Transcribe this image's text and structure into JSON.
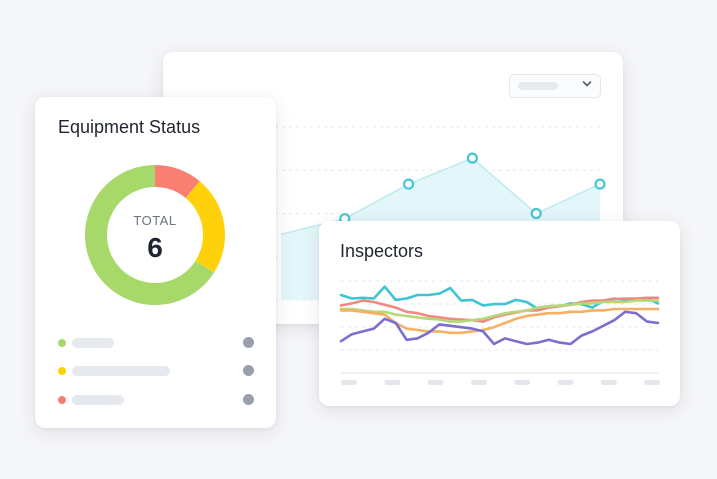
{
  "colors": {
    "background": "#f5f6f8",
    "area_fill": "#e3f6fa",
    "area_line": "#45c6d3",
    "donut_green": "#a7d96a",
    "donut_yellow": "#fed10a",
    "donut_red": "#f87f72",
    "line_cyan": "#3fc4d3",
    "line_red": "#f08a80",
    "line_green": "#b4d97a",
    "line_orange": "#f4b063",
    "line_purple": "#7a6fd0"
  },
  "header_widget": {
    "period_select_icon": "chevron-down-icon"
  },
  "equipment": {
    "title": "Equipment Status",
    "total_label": "TOTAL",
    "total_value": "6",
    "segments": [
      {
        "color": "#f87f72",
        "fraction": 0.11
      },
      {
        "color": "#fed10a",
        "fraction": 0.23
      },
      {
        "color": "#a7d96a",
        "fraction": 0.66
      }
    ],
    "legend": [
      {
        "color": "#a7d96a"
      },
      {
        "color": "#fed10a"
      },
      {
        "color": "#f87f72"
      }
    ]
  },
  "inspectors": {
    "title": "Inspectors"
  },
  "chart_data": [
    {
      "type": "area",
      "title": "",
      "x": [
        1,
        2,
        3,
        4,
        5,
        6
      ],
      "series": [
        {
          "values": [
            38,
            47,
            67,
            82,
            50,
            67
          ]
        }
      ],
      "ylim": [
        0,
        100
      ],
      "grid": true
    },
    {
      "type": "line",
      "title": "Inspectors",
      "x": [
        1,
        2,
        3,
        4,
        5,
        6,
        7,
        8,
        9,
        10,
        11,
        12,
        13,
        14,
        15,
        16,
        17,
        18,
        19,
        20,
        21,
        22,
        23,
        24,
        25,
        26,
        27,
        28,
        29,
        30
      ],
      "series": [
        {
          "color": "#3fc4d3",
          "values": [
            60,
            55,
            56,
            55,
            72,
            53,
            55,
            60,
            60,
            62,
            70,
            52,
            53,
            45,
            47,
            47,
            53,
            50,
            40,
            44,
            44,
            48,
            47,
            42,
            52,
            55,
            53,
            54,
            55,
            48
          ]
        },
        {
          "color": "#f08a80",
          "values": [
            45,
            48,
            52,
            50,
            46,
            42,
            36,
            34,
            30,
            28,
            26,
            25,
            24,
            22,
            28,
            32,
            35,
            38,
            38,
            42,
            44,
            46,
            50,
            52,
            52,
            54,
            55,
            55,
            56,
            56
          ]
        },
        {
          "color": "#b4d97a",
          "values": [
            40,
            40,
            38,
            36,
            36,
            32,
            30,
            28,
            26,
            25,
            22,
            22,
            24,
            26,
            30,
            34,
            36,
            38,
            42,
            44,
            45,
            46,
            48,
            48,
            50,
            50,
            50,
            52,
            52,
            52
          ]
        },
        {
          "color": "#f4b063",
          "values": [
            38,
            38,
            36,
            34,
            32,
            20,
            12,
            10,
            8,
            8,
            6,
            6,
            8,
            10,
            14,
            20,
            26,
            30,
            32,
            34,
            34,
            36,
            36,
            38,
            38,
            40,
            40,
            40,
            40,
            40
          ]
        },
        {
          "color": "#7a6fd0",
          "values": [
            -6,
            4,
            8,
            12,
            26,
            20,
            -4,
            -2,
            6,
            18,
            16,
            14,
            12,
            8,
            -10,
            -2,
            -6,
            -10,
            -8,
            -4,
            -8,
            -10,
            2,
            8,
            16,
            24,
            36,
            34,
            22,
            20
          ]
        }
      ],
      "ylim": [
        -20,
        80
      ],
      "grid": true
    }
  ]
}
